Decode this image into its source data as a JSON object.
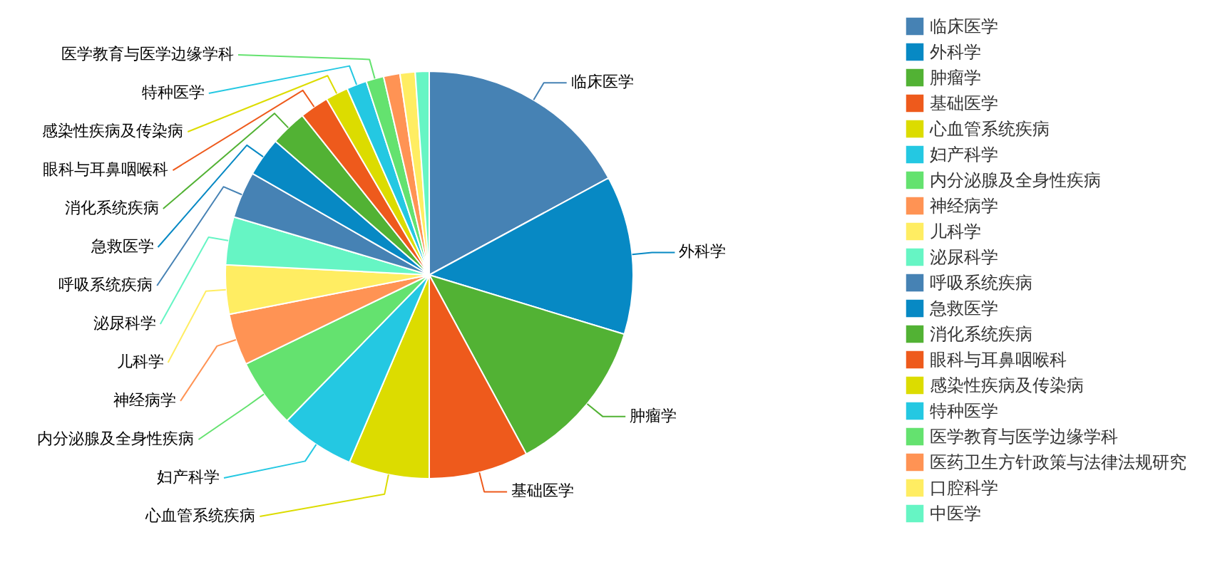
{
  "chart_data": {
    "type": "pie",
    "categories": [
      "临床医学",
      "外科学",
      "肿瘤学",
      "基础医学",
      "心血管系统疾病",
      "妇产科学",
      "内分泌腺及全身性疾病",
      "神经病学",
      "儿科学",
      "泌尿科学",
      "呼吸系统疾病",
      "急救医学",
      "消化系统疾病",
      "眼科与耳鼻咽喉科",
      "感染性疾病及传染病",
      "特种医学",
      "医学教育与医学边缘学科",
      "医药卫生方针政策与法律法规研究",
      "口腔科学",
      "中医学"
    ],
    "values": [
      17.1,
      12.6,
      12.4,
      7.9,
      6.4,
      5.9,
      5.5,
      4.1,
      3.9,
      3.8,
      3.7,
      3.1,
      2.9,
      2.3,
      1.8,
      1.6,
      1.4,
      1.3,
      1.2,
      1.1
    ],
    "colors": [
      "#4682b4",
      "#0789c4",
      "#52b234",
      "#ee5a1c",
      "#dcdc00",
      "#24c8e2",
      "#64e26f",
      "#ff9354",
      "#ffed62",
      "#66f5c4",
      "#4682b4",
      "#0789c4",
      "#52b234",
      "#ee5a1c",
      "#dcdc00",
      "#24c8e2",
      "#64e26f",
      "#ff9354",
      "#ffed62",
      "#66f5c4"
    ],
    "legend": "right"
  }
}
